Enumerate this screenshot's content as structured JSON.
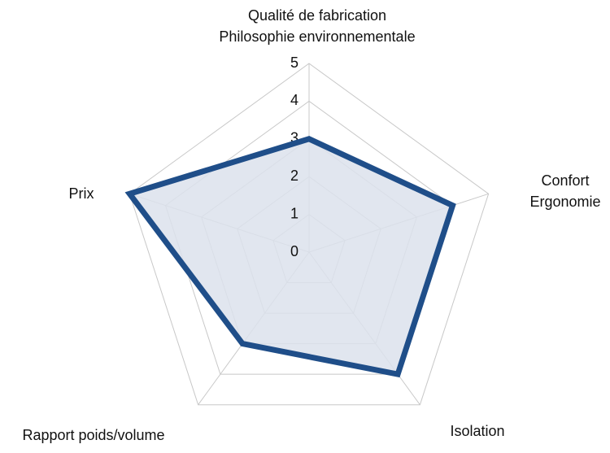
{
  "chart_data": {
    "type": "radar",
    "categories": [
      "Qualité de fabrication\nPhilosophie environnementale",
      "Confort\nErgonomie",
      "Isolation",
      "Rapport poids/volume",
      "Prix"
    ],
    "values": [
      3,
      4,
      4,
      3,
      5
    ],
    "color": "#1f4e89",
    "fill": "#dce2ec",
    "rlim": [
      0,
      5
    ],
    "rticks": [
      0,
      1,
      2,
      3,
      4,
      5
    ],
    "grid": true
  }
}
